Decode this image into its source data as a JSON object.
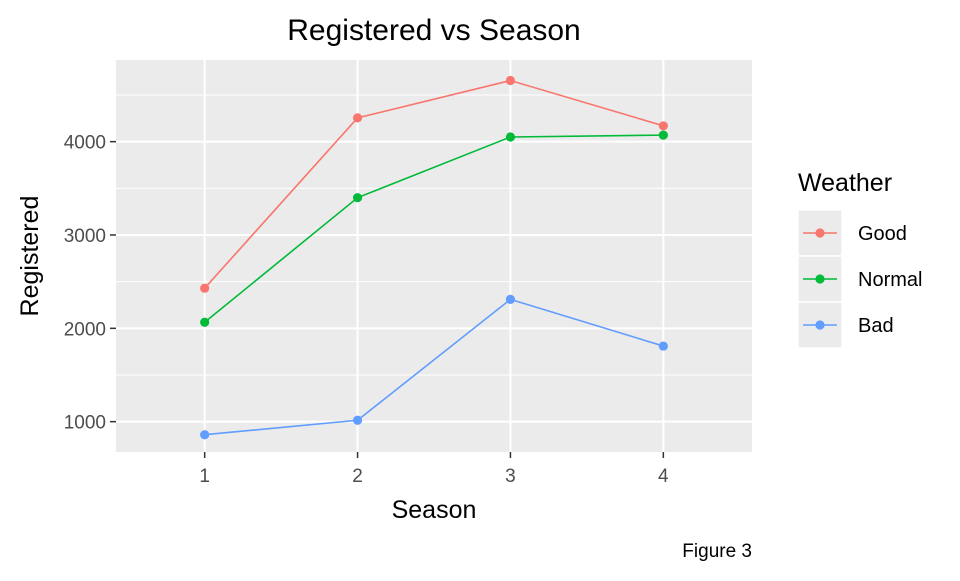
{
  "chart_data": {
    "type": "line",
    "title": "Registered vs Season",
    "xlabel": "Season",
    "ylabel": "Registered",
    "caption": "Figure 3",
    "x": [
      1,
      2,
      3,
      4
    ],
    "x_tick_labels": [
      "1",
      "2",
      "3",
      "4"
    ],
    "y_ticks": [
      1000,
      2000,
      3000,
      4000
    ],
    "y_tick_labels": [
      "1000",
      "2000",
      "3000",
      "4000"
    ],
    "xlim": [
      0.42,
      4.58
    ],
    "ylim": [
      675,
      4875
    ],
    "grid": true,
    "legend_title": "Weather",
    "legend_position": "right",
    "series": [
      {
        "name": "Good",
        "color": "#F8766D",
        "values": [
          2430,
          4255,
          4655,
          4170
        ]
      },
      {
        "name": "Normal",
        "color": "#00BA38",
        "values": [
          2065,
          3400,
          4050,
          4070
        ]
      },
      {
        "name": "Bad",
        "color": "#619CFF",
        "values": [
          860,
          1015,
          2310,
          1810
        ]
      }
    ],
    "panel_background": "#EBEBEB",
    "grid_color": "#FFFFFF"
  }
}
